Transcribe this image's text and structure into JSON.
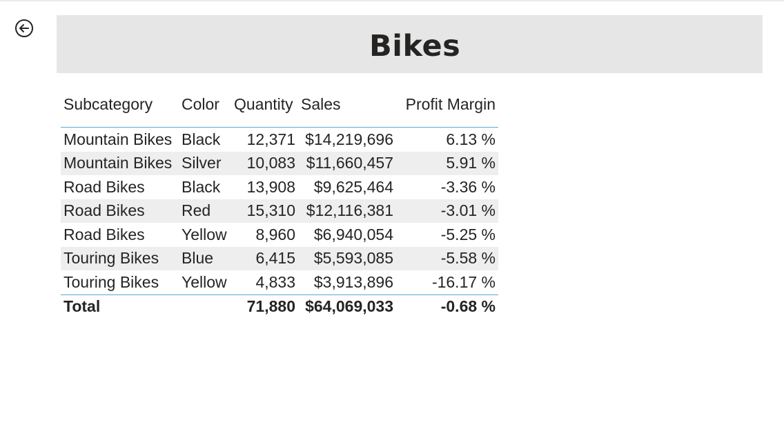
{
  "page": {
    "title": "Bikes",
    "back_icon": "back-arrow-icon"
  },
  "table": {
    "columns": [
      "Subcategory",
      "Color",
      "Quantity",
      "Sales",
      "Profit Margin"
    ],
    "rows": [
      [
        "Mountain Bikes",
        "Black",
        "12,371",
        "$14,219,696",
        "6.13 %"
      ],
      [
        "Mountain Bikes",
        "Silver",
        "10,083",
        "$11,660,457",
        "5.91 %"
      ],
      [
        "Road Bikes",
        "Black",
        "13,908",
        "$9,625,464",
        "-3.36 %"
      ],
      [
        "Road Bikes",
        "Red",
        "15,310",
        "$12,116,381",
        "-3.01 %"
      ],
      [
        "Road Bikes",
        "Yellow",
        "8,960",
        "$6,940,054",
        "-5.25 %"
      ],
      [
        "Touring Bikes",
        "Blue",
        "6,415",
        "$5,593,085",
        "-5.58 %"
      ],
      [
        "Touring Bikes",
        "Yellow",
        "4,833",
        "$3,913,896",
        "-16.17 %"
      ]
    ],
    "total": {
      "label": "Total",
      "quantity": "71,880",
      "sales": "$64,069,033",
      "profit_margin": "-0.68 %"
    }
  },
  "colors": {
    "banner_bg": "#e6e6e6",
    "divider": "#57a7d6",
    "row_alt": "#eeeeee",
    "text": "#252423"
  }
}
